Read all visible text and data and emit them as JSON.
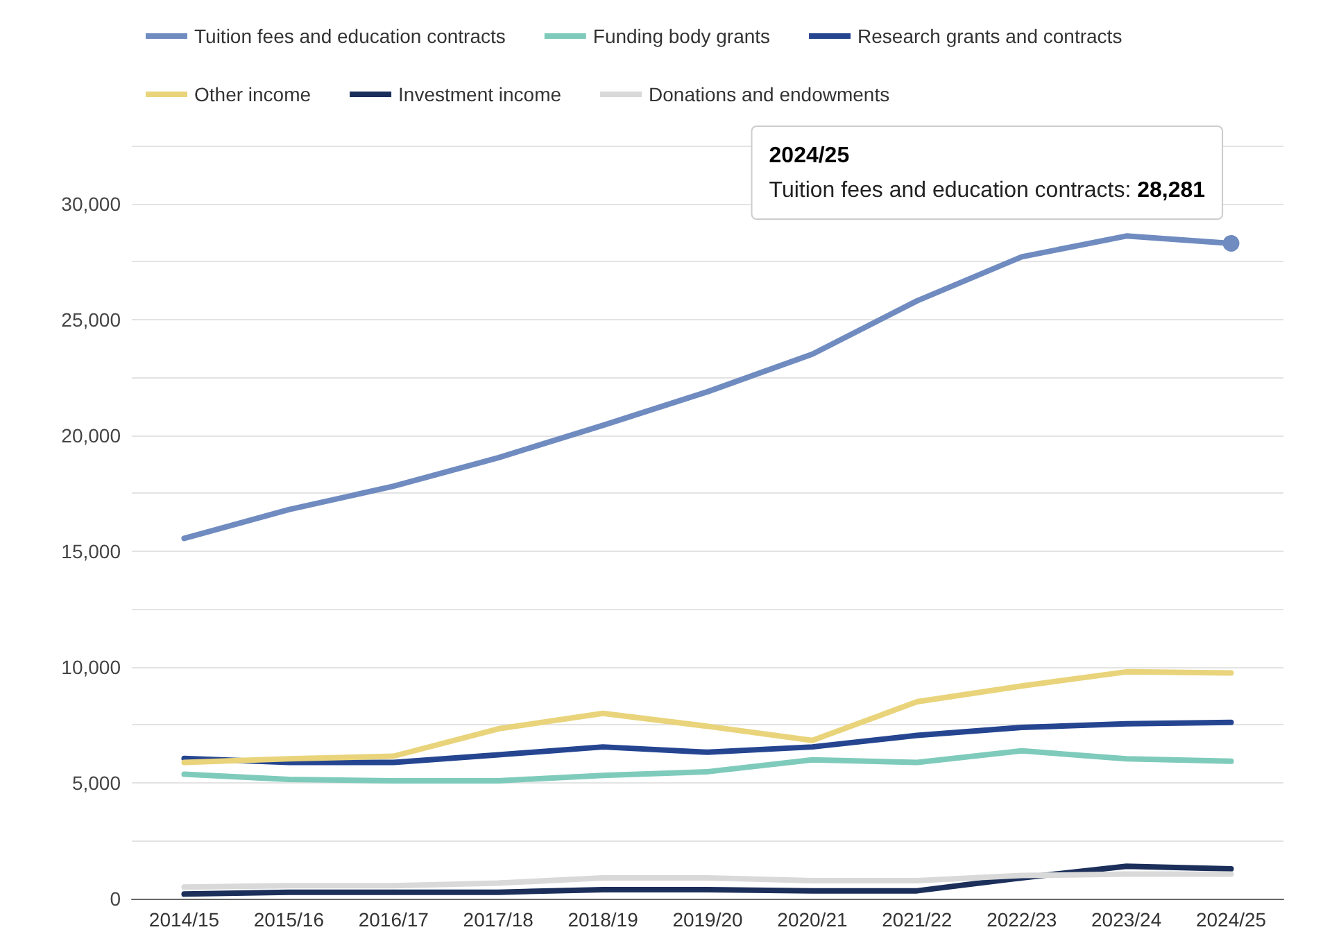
{
  "chart_data": {
    "type": "line",
    "categories": [
      "2014/15",
      "2015/16",
      "2016/17",
      "2017/18",
      "2018/19",
      "2019/20",
      "2020/21",
      "2021/22",
      "2022/23",
      "2023/24",
      "2024/25"
    ],
    "series": [
      {
        "name": "Tuition fees and education contracts",
        "color": "#6f8bc0",
        "values": [
          15550,
          16790,
          17800,
          19030,
          20430,
          21880,
          23500,
          25800,
          27700,
          28600,
          28281
        ]
      },
      {
        "name": "Funding body grants",
        "color": "#7fcbbb",
        "values": [
          5370,
          5150,
          5090,
          5090,
          5320,
          5480,
          5990,
          5880,
          6380,
          6040,
          5930
        ]
      },
      {
        "name": "Research grants and contracts",
        "color": "#254591",
        "values": [
          6050,
          5880,
          5880,
          6210,
          6550,
          6320,
          6550,
          7050,
          7390,
          7550,
          7610
        ]
      },
      {
        "name": "Other income",
        "color": "#e9d47b",
        "values": [
          5880,
          6040,
          6150,
          7330,
          8000,
          7440,
          6830,
          8500,
          9180,
          9790,
          9740
        ]
      },
      {
        "name": "Investment income",
        "color": "#1b2f5a",
        "values": [
          200,
          280,
          280,
          280,
          390,
          390,
          340,
          340,
          900,
          1400,
          1290
        ]
      },
      {
        "name": "Donations and endowments",
        "color": "#d9d9d9",
        "values": [
          500,
          560,
          560,
          670,
          900,
          900,
          780,
          780,
          1000,
          1060,
          1060
        ]
      }
    ],
    "ylim": [
      0,
      32500
    ],
    "yticks": [
      0,
      {
        "value": 2500,
        "label": null
      },
      {
        "value": 5000,
        "label": "5,000"
      },
      {
        "value": 7500,
        "label": null
      },
      {
        "value": 10000,
        "label": "10,000"
      },
      {
        "value": 12500,
        "label": null
      },
      {
        "value": 15000,
        "label": "15,000"
      },
      {
        "value": 17500,
        "label": null
      },
      {
        "value": 20000,
        "label": "20,000"
      },
      {
        "value": 22500,
        "label": null
      },
      {
        "value": 25000,
        "label": "25,000"
      },
      {
        "value": 27500,
        "label": null
      },
      {
        "value": 30000,
        "label": "30,000"
      },
      {
        "value": 32500,
        "label": null
      }
    ],
    "grid": "y",
    "legend": "top",
    "marker": "none",
    "line_style": "solid",
    "annotations": [
      {
        "text": "2024/25\nTuition fees and education contracts: 28,281",
        "x": "2024/25",
        "y": 28281
      }
    ]
  }
}
